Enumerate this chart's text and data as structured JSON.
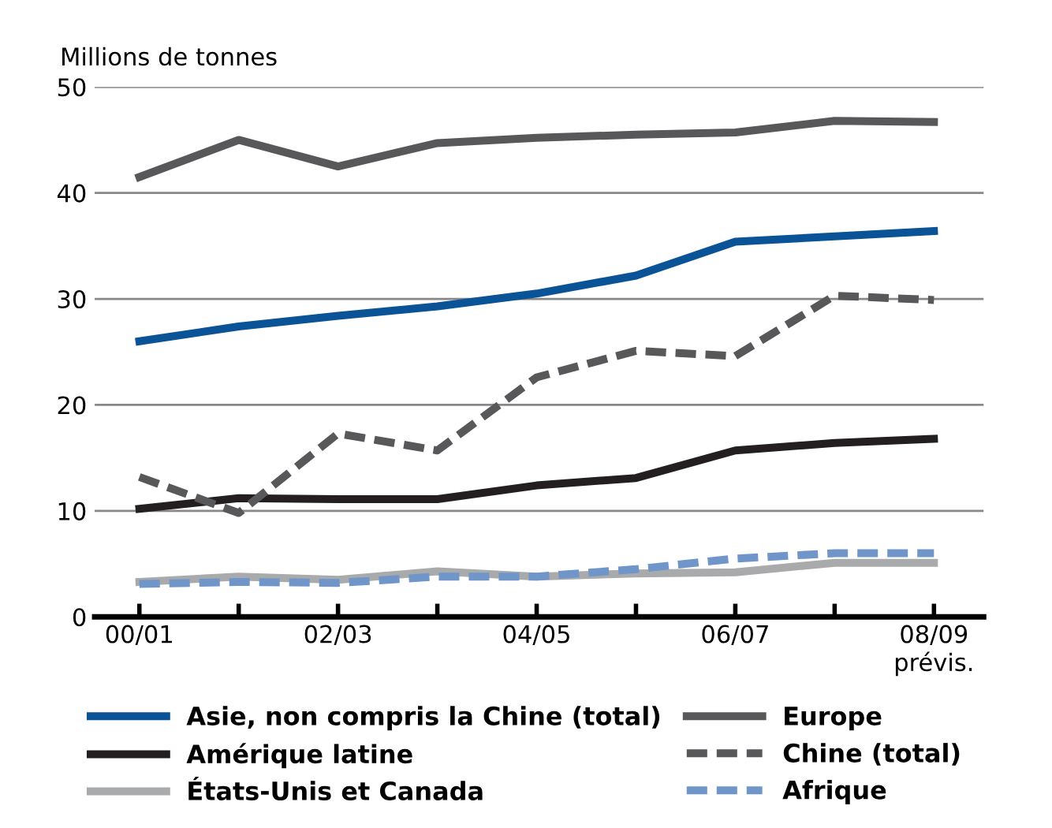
{
  "chart_data": {
    "type": "line",
    "ylabel": "Millions de tonnes",
    "categories": [
      "00/01",
      null,
      "02/03",
      null,
      "04/05",
      null,
      "06/07",
      null,
      "08/09\nprévis."
    ],
    "ylim": [
      0,
      50
    ],
    "yticks": [
      0,
      10,
      20,
      30,
      40,
      50
    ],
    "grid": "y",
    "legend": "bottom",
    "marker": "none",
    "series": [
      {
        "name": "Asie, non compris la Chine (total)",
        "color": "#0a5396",
        "line_style": "solid",
        "values": [
          26,
          27.4,
          28.4,
          29.3,
          30.5,
          32.2,
          35.4,
          35.9,
          36.4
        ]
      },
      {
        "name": "Amérique latine",
        "color": "#231f20",
        "line_style": "solid",
        "values": [
          10.2,
          11.2,
          11.1,
          11.1,
          12.4,
          13.1,
          15.7,
          16.4,
          16.8
        ]
      },
      {
        "name": "États-Unis et Canada",
        "color": "#a9aaac",
        "line_style": "solid",
        "values": [
          3.3,
          3.8,
          3.5,
          4.3,
          3.8,
          4.1,
          4.2,
          5.1,
          5.1
        ]
      },
      {
        "name": "Europe",
        "color": "#58585a",
        "line_style": "solid",
        "values": [
          41.5,
          45,
          42.5,
          44.7,
          45.2,
          45.5,
          45.7,
          46.8,
          46.7
        ]
      },
      {
        "name": "Chine (total)",
        "color": "#58585a",
        "line_style": "dashed",
        "values": [
          13.2,
          9.8,
          17.3,
          15.7,
          22.6,
          25.1,
          24.6,
          30.3,
          29.9
        ]
      },
      {
        "name": "Afrique",
        "color": "#6f95c9",
        "line_style": "dashed",
        "values": [
          3.1,
          3.3,
          3.2,
          3.8,
          3.8,
          4.5,
          5.5,
          6.0,
          6.0
        ]
      }
    ]
  }
}
